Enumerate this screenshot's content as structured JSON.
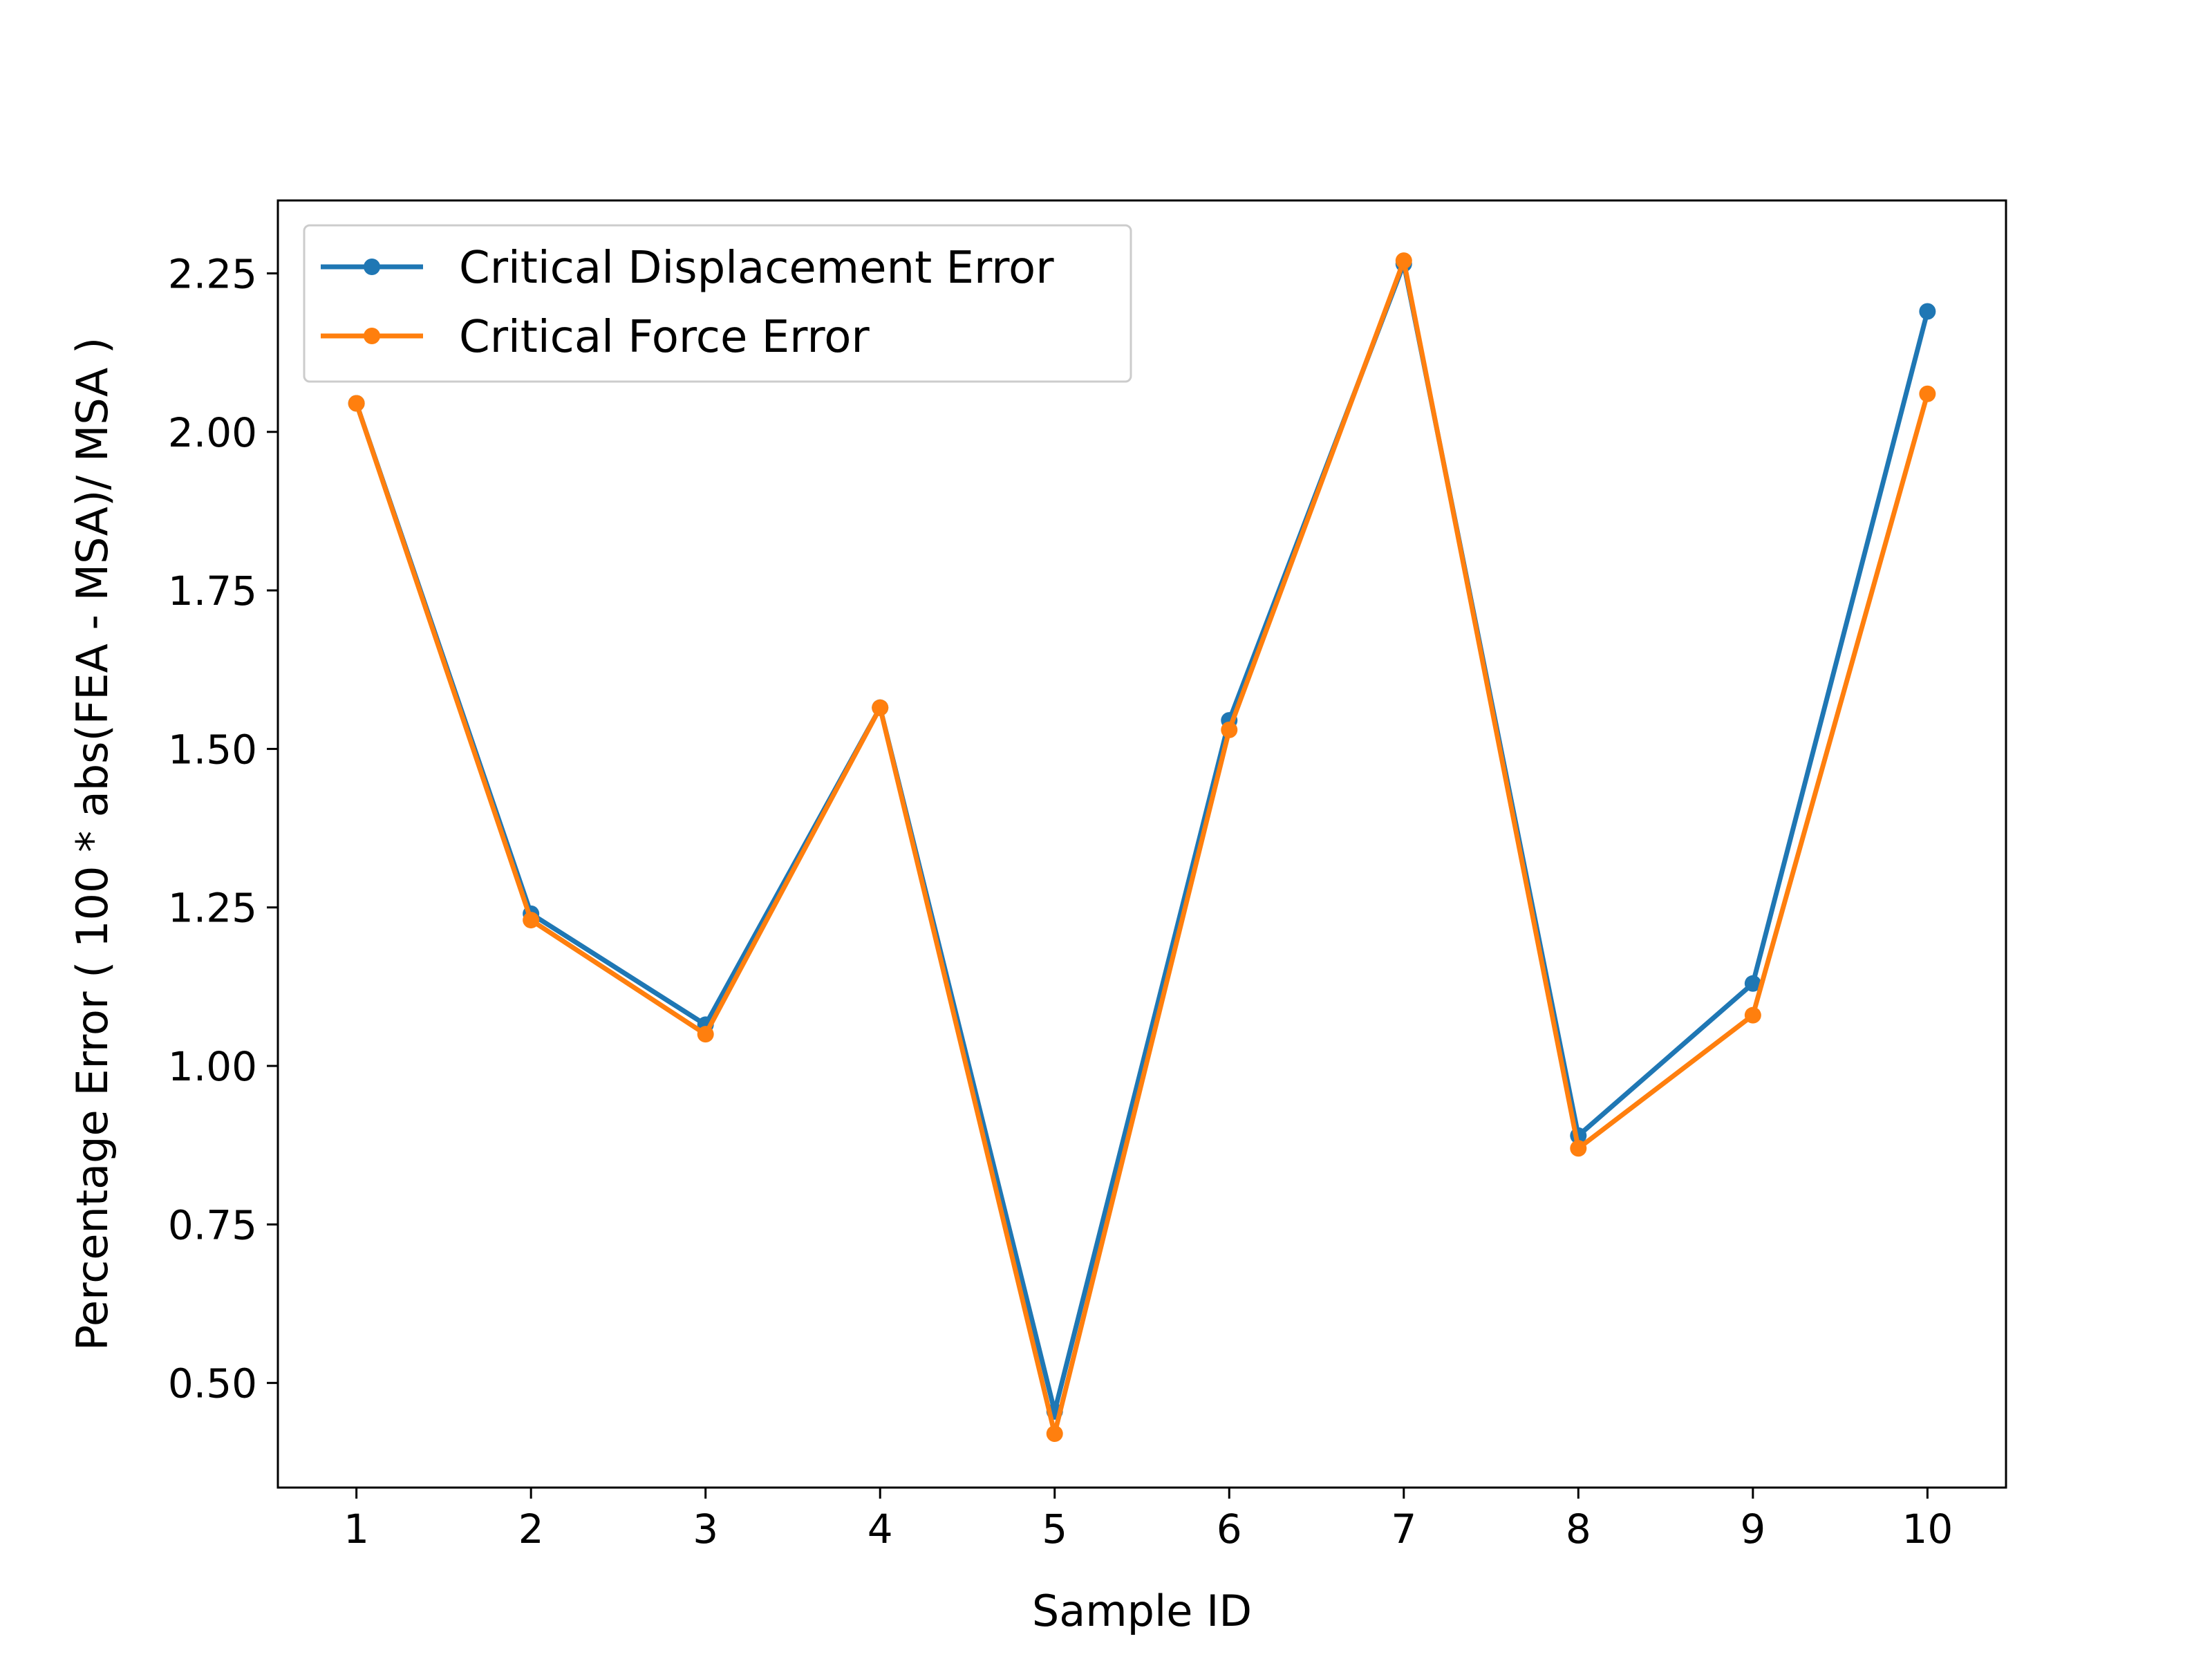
{
  "chart_data": {
    "type": "line",
    "title": "",
    "xlabel": "Sample ID",
    "ylabel": "Percentage Error ( 100 * abs(FEA - MSA)/ MSA )",
    "x": [
      1,
      2,
      3,
      4,
      5,
      6,
      7,
      8,
      9,
      10
    ],
    "x_tick_labels": [
      "1",
      "2",
      "3",
      "4",
      "5",
      "6",
      "7",
      "8",
      "9",
      "10"
    ],
    "y_ticks": [
      0.5,
      0.75,
      1.0,
      1.25,
      1.5,
      1.75,
      2.0,
      2.25
    ],
    "y_tick_labels": [
      "0.50",
      "0.75",
      "1.00",
      "1.25",
      "1.50",
      "1.75",
      "2.00",
      "2.25"
    ],
    "xlim": [
      0.55,
      10.45
    ],
    "ylim": [
      0.335,
      2.365
    ],
    "grid": false,
    "legend_position": "upper-left",
    "series": [
      {
        "name": "Critical Displacement Error",
        "color": "#1f77b4",
        "marker": "circle",
        "values": [
          2.045,
          1.24,
          1.065,
          1.565,
          0.455,
          1.545,
          2.265,
          0.89,
          1.13,
          2.19
        ]
      },
      {
        "name": "Critical Force Error",
        "color": "#ff7f0e",
        "marker": "circle",
        "values": [
          2.045,
          1.23,
          1.05,
          1.565,
          0.42,
          1.53,
          2.27,
          0.87,
          1.08,
          2.06
        ]
      }
    ]
  }
}
